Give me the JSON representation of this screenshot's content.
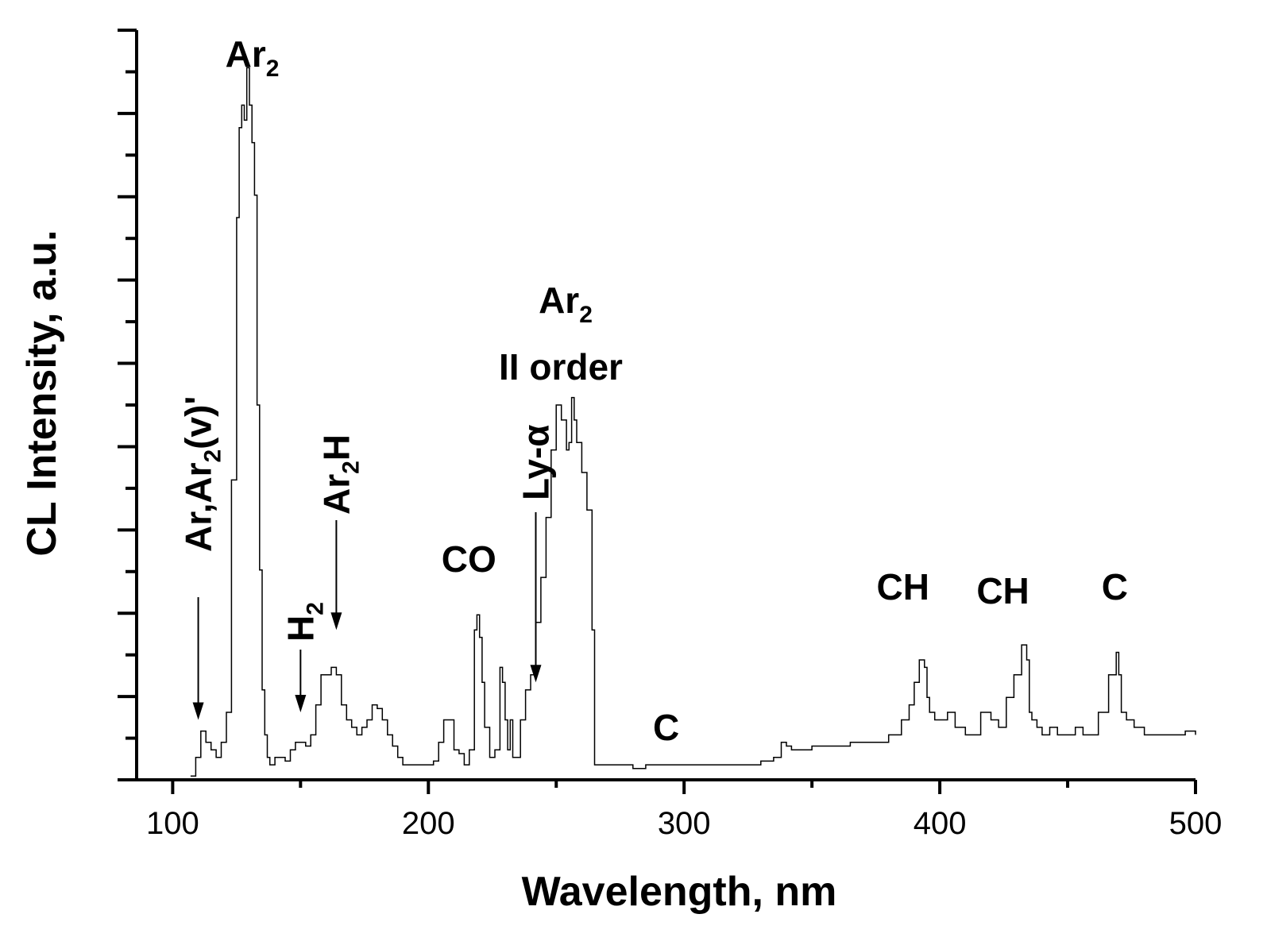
{
  "chart_data": {
    "type": "line",
    "title": "",
    "xlabel": "Wavelength, nm",
    "ylabel": "CL Intensity, a.u.",
    "xlim": [
      80,
      500
    ],
    "ylim": [
      0,
      100
    ],
    "x_ticks": [
      100,
      200,
      300,
      400,
      500
    ],
    "x_tick_labels": [
      "100",
      "200",
      "300",
      "400",
      "500"
    ],
    "grid": false,
    "legend": "none",
    "line_color": "#000000",
    "series": [
      {
        "x": [
          107,
          109,
          111,
          113,
          115,
          117,
          119,
          121,
          123,
          125,
          126,
          127,
          128,
          129,
          130,
          131,
          132,
          133,
          134,
          135,
          136,
          137,
          138,
          140,
          142,
          144,
          146,
          148,
          150,
          152,
          154,
          156,
          158,
          160,
          162,
          164,
          166,
          168,
          170,
          172,
          174,
          176,
          178,
          180,
          182,
          184,
          186,
          188,
          190,
          192,
          194,
          196,
          198,
          200,
          202,
          204,
          206,
          208,
          210,
          212,
          214,
          216,
          218,
          219,
          220,
          221,
          222,
          224,
          226,
          228,
          229,
          230,
          231,
          232,
          233,
          234,
          236,
          238,
          240,
          242,
          244,
          246,
          248,
          250,
          252,
          254,
          255,
          256,
          257,
          258,
          260,
          262,
          264,
          265,
          266,
          268,
          270,
          275,
          280,
          285,
          290,
          295,
          300,
          305,
          310,
          315,
          320,
          325,
          330,
          335,
          338,
          340,
          342,
          345,
          350,
          355,
          360,
          365,
          370,
          375,
          380,
          385,
          388,
          390,
          392,
          394,
          395,
          396,
          398,
          400,
          403,
          406,
          410,
          413,
          416,
          420,
          423,
          426,
          429,
          432,
          434,
          435,
          436,
          438,
          440,
          443,
          446,
          450,
          453,
          456,
          459,
          462,
          466,
          469,
          470,
          471,
          473,
          476,
          480,
          484,
          488,
          492,
          496,
          500
        ],
        "y": [
          0.5,
          3,
          6.5,
          5,
          4,
          3,
          5,
          9,
          40,
          75,
          87,
          90,
          88,
          95,
          90,
          85,
          78,
          50,
          28,
          12,
          6,
          3,
          2,
          3,
          3,
          2.5,
          4,
          5,
          5,
          4.5,
          6,
          10,
          14,
          14,
          15,
          14,
          10,
          8,
          7,
          6,
          7,
          8,
          10,
          9.5,
          8,
          6,
          4.5,
          3,
          2,
          2,
          2,
          2,
          2,
          2,
          2.5,
          5,
          8,
          8,
          4,
          3.5,
          2,
          4,
          20,
          22,
          19,
          13,
          7,
          3,
          4,
          15,
          13,
          8,
          4,
          8,
          3,
          3,
          8,
          12,
          14,
          21,
          27,
          35,
          44,
          50,
          48,
          44,
          45,
          51,
          48,
          45,
          41,
          36,
          20,
          2,
          2,
          2,
          2,
          2,
          1.5,
          2,
          2,
          2,
          2,
          2,
          2,
          2,
          2,
          2,
          2.5,
          3,
          5,
          4.5,
          4,
          4,
          4.5,
          4.5,
          4.5,
          5,
          5,
          5,
          6,
          8,
          10,
          13,
          16,
          15,
          11,
          9,
          8,
          8,
          9,
          7,
          6,
          6,
          9,
          8,
          7,
          11,
          14,
          18,
          16,
          9,
          8,
          7,
          6,
          7,
          6,
          6,
          7,
          6,
          6,
          9,
          14,
          17,
          14,
          9,
          8,
          7,
          6,
          6,
          6,
          6,
          6.5,
          6
        ]
      }
    ],
    "annotations": [
      {
        "main": "Ar",
        "sub": "2",
        "tail": "",
        "x": 128,
        "arrow_y": null
      },
      {
        "main": "Ar,Ar",
        "sub": "2",
        "tail": "(v)",
        "x": 110,
        "arrow_y": 8,
        "prime": "'"
      },
      {
        "main": "H",
        "sub": "2",
        "tail": "",
        "x": 150,
        "arrow_y": 9
      },
      {
        "main": "Ar",
        "sub": "2",
        "tail": "H",
        "x": 164,
        "arrow_y": 20
      },
      {
        "main": "CO",
        "sub": "",
        "tail": "",
        "x": 218,
        "arrow_y": null
      },
      {
        "main": "Ly-",
        "sub": "",
        "tail": "α",
        "x": 242,
        "arrow_y": 13
      },
      {
        "main": "Ar",
        "sub": "2",
        "tail": "",
        "x": 258,
        "arrow_y": null
      },
      {
        "main": "II order",
        "sub": "",
        "tail": "",
        "x": 258,
        "arrow_y": null
      },
      {
        "main": "C",
        "sub": "",
        "tail": "",
        "x": 293,
        "arrow_y": null
      },
      {
        "main": "CH",
        "sub": "",
        "tail": "",
        "x": 394,
        "arrow_y": null
      },
      {
        "main": "CH",
        "sub": "",
        "tail": "",
        "x": 434,
        "arrow_y": null
      },
      {
        "main": "C",
        "sub": "",
        "tail": "",
        "x": 470,
        "arrow_y": null
      }
    ]
  }
}
